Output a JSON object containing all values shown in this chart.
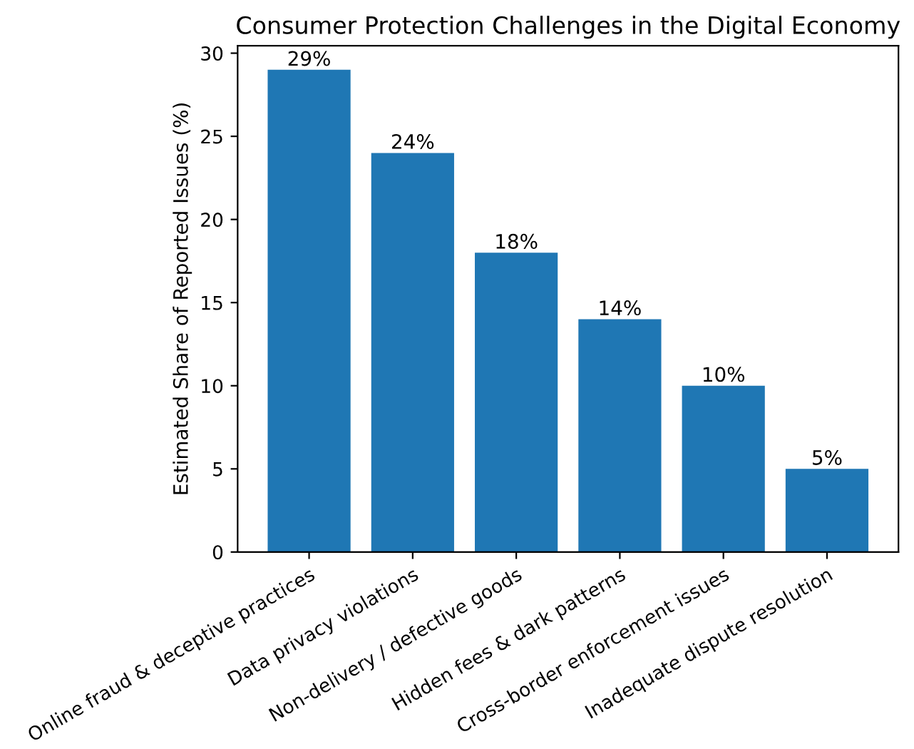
{
  "chart_data": {
    "type": "bar",
    "title": "Consumer Protection Challenges in the Digital Economy",
    "ylabel": "Estimated Share of Reported Issues (%)",
    "categories": [
      "Online fraud & deceptive practices",
      "Data privacy violations",
      "Non-delivery / defective goods",
      "Hidden fees & dark patterns",
      "Cross-border enforcement issues",
      "Inadequate dispute resolution"
    ],
    "values": [
      29,
      24,
      18,
      14,
      10,
      5
    ],
    "value_labels": [
      "29%",
      "24%",
      "18%",
      "14%",
      "10%",
      "5%"
    ],
    "color": "#1f77b4",
    "ylim": [
      0,
      30.45
    ],
    "yticks": [
      0,
      5,
      10,
      15,
      20,
      25,
      30
    ],
    "grid": false,
    "legend": false
  }
}
